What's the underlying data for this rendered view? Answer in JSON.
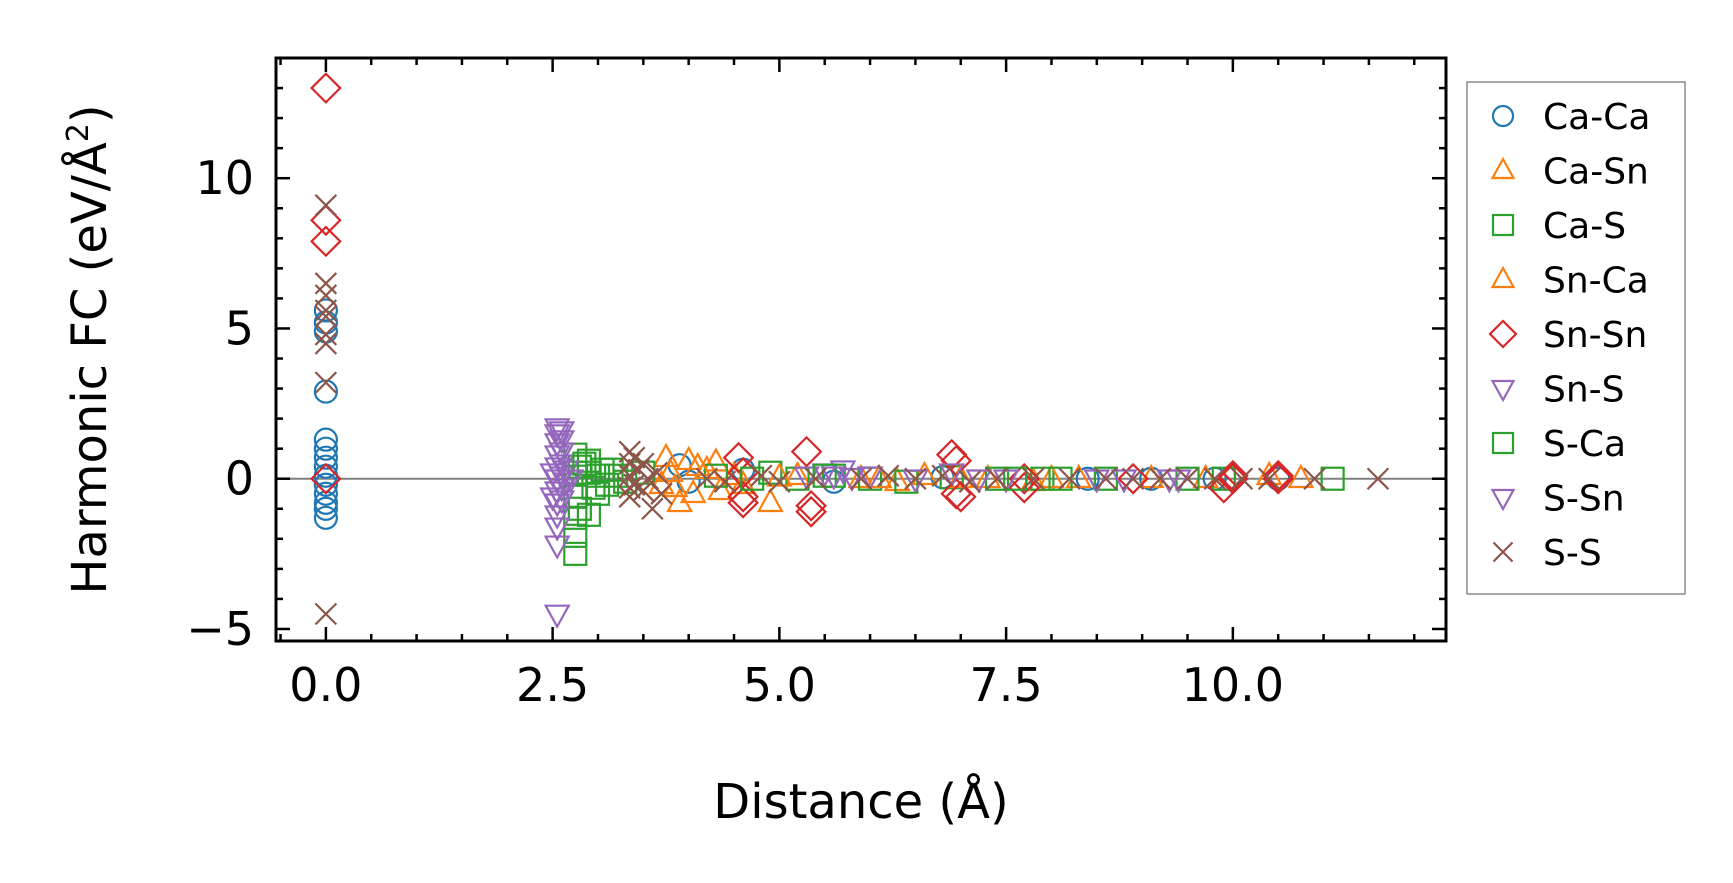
{
  "chart_data": {
    "type": "scatter",
    "xlabel": "Distance (Å)",
    "ylabel": {
      "prefix": "Harmonic FC (eV/Å",
      "sup": "2",
      "suffix": ")"
    },
    "xlim": [
      -0.55,
      12.35
    ],
    "ylim": [
      -5.4,
      14.0
    ],
    "xticks": [
      0.0,
      2.5,
      5.0,
      7.5,
      10.0
    ],
    "xtick_labels": [
      "0.0",
      "2.5",
      "5.0",
      "7.5",
      "10.0"
    ],
    "yticks": [
      -5,
      0,
      5,
      10
    ],
    "ytick_labels": [
      "−5",
      "0",
      "5",
      "10"
    ],
    "zero_line": true,
    "legend_position": "outside-right",
    "series": [
      {
        "name": "Ca-Ca",
        "marker": "circle",
        "color": "#1f77b4",
        "points": [
          [
            0,
            4.9
          ],
          [
            0,
            5.2
          ],
          [
            0,
            5.6
          ],
          [
            0,
            2.9
          ],
          [
            0,
            1.3
          ],
          [
            0,
            1.0
          ],
          [
            0,
            0.7
          ],
          [
            0,
            0.4
          ],
          [
            0,
            0.1
          ],
          [
            0,
            -0.2
          ],
          [
            0,
            -0.5
          ],
          [
            0,
            -0.8
          ],
          [
            0,
            -1.0
          ],
          [
            0,
            -1.3
          ],
          [
            3.9,
            0.45
          ],
          [
            4.0,
            -0.1
          ],
          [
            4.6,
            0.3
          ],
          [
            5.6,
            -0.1
          ],
          [
            6.8,
            0.05
          ],
          [
            8.4,
            0.0
          ],
          [
            9.1,
            0.0
          ],
          [
            9.8,
            0.0
          ],
          [
            10.5,
            0.0
          ]
        ]
      },
      {
        "name": "Ca-Sn",
        "marker": "triangle-up",
        "color": "#ff7f0e",
        "points": [
          [
            3.75,
            0.7
          ],
          [
            3.8,
            0.2
          ],
          [
            3.85,
            -0.3
          ],
          [
            3.9,
            -0.8
          ],
          [
            4.0,
            0.6
          ],
          [
            4.05,
            -0.5
          ],
          [
            4.2,
            0.3
          ],
          [
            4.3,
            0.55
          ],
          [
            4.35,
            -0.4
          ],
          [
            4.5,
            0.1
          ],
          [
            4.9,
            -0.8
          ],
          [
            5.2,
            0.1
          ],
          [
            5.9,
            0.0
          ],
          [
            6.3,
            -0.1
          ],
          [
            6.6,
            0.1
          ],
          [
            7.3,
            0.0
          ],
          [
            7.8,
            -0.1
          ],
          [
            8.3,
            0.0
          ],
          [
            9.1,
            0.0
          ],
          [
            9.7,
            0.0
          ],
          [
            10.4,
            0.1
          ],
          [
            10.75,
            0.0
          ]
        ]
      },
      {
        "name": "Ca-S",
        "marker": "square",
        "color": "#2ca02c",
        "points": [
          [
            2.75,
            -2.5
          ],
          [
            2.75,
            -1.9
          ],
          [
            2.75,
            -1.3
          ],
          [
            2.75,
            -0.6
          ],
          [
            2.75,
            0.2
          ],
          [
            2.75,
            0.8
          ],
          [
            2.8,
            -1.0
          ],
          [
            2.8,
            0.4
          ],
          [
            2.9,
            -1.2
          ],
          [
            2.9,
            0.2
          ],
          [
            2.9,
            0.6
          ],
          [
            3.0,
            -0.5
          ],
          [
            3.0,
            0.1
          ],
          [
            3.05,
            0.3
          ],
          [
            3.1,
            -0.2
          ],
          [
            3.2,
            0.1
          ],
          [
            3.3,
            -0.1
          ],
          [
            3.5,
            0.2
          ],
          [
            4.3,
            0.1
          ],
          [
            4.9,
            0.2
          ],
          [
            5.2,
            0.0
          ],
          [
            5.6,
            0.1
          ],
          [
            6.0,
            0.0
          ],
          [
            6.4,
            -0.1
          ],
          [
            6.9,
            0.05
          ],
          [
            7.4,
            0.0
          ],
          [
            7.9,
            0.0
          ],
          [
            8.6,
            0.0
          ],
          [
            9.5,
            0.0
          ],
          [
            9.9,
            0.0
          ],
          [
            11.1,
            0.0
          ]
        ]
      },
      {
        "name": "Sn-Ca",
        "marker": "triangle-up",
        "color": "#ff7f0e",
        "points": [
          [
            3.7,
            -0.2
          ],
          [
            4.1,
            0.4
          ],
          [
            4.6,
            -0.2
          ],
          [
            5.0,
            0.05
          ],
          [
            6.1,
            0.0
          ],
          [
            7.0,
            0.0
          ],
          [
            8.0,
            0.0
          ]
        ]
      },
      {
        "name": "Sn-Sn",
        "marker": "diamond",
        "color": "#d62728",
        "points": [
          [
            0,
            13.0
          ],
          [
            0,
            8.6
          ],
          [
            0,
            7.9
          ],
          [
            0,
            0.0
          ],
          [
            4.55,
            0.7
          ],
          [
            4.6,
            0.2
          ],
          [
            4.6,
            -0.6
          ],
          [
            4.6,
            -0.8
          ],
          [
            5.3,
            0.9
          ],
          [
            5.35,
            -0.9
          ],
          [
            5.35,
            -1.1
          ],
          [
            6.9,
            0.8
          ],
          [
            6.95,
            0.6
          ],
          [
            6.95,
            -0.5
          ],
          [
            7.0,
            -0.6
          ],
          [
            7.7,
            0.0
          ],
          [
            7.7,
            -0.3
          ],
          [
            8.9,
            0.0
          ],
          [
            9.9,
            -0.3
          ],
          [
            10.0,
            0.0
          ],
          [
            10.0,
            0.1
          ],
          [
            10.5,
            0.0
          ],
          [
            10.5,
            0.1
          ]
        ]
      },
      {
        "name": "Sn-S",
        "marker": "triangle-down",
        "color": "#9467bd",
        "points": [
          [
            2.55,
            1.7
          ],
          [
            2.55,
            1.5
          ],
          [
            2.55,
            1.2
          ],
          [
            2.55,
            0.8
          ],
          [
            2.55,
            0.4
          ],
          [
            2.55,
            0.0
          ],
          [
            2.55,
            -0.4
          ],
          [
            2.55,
            -0.8
          ],
          [
            2.55,
            -1.2
          ],
          [
            2.55,
            -1.6
          ],
          [
            2.55,
            -2.2
          ],
          [
            2.55,
            -4.5
          ],
          [
            2.6,
            1.6
          ],
          [
            2.6,
            1.3
          ],
          [
            2.6,
            0.9
          ],
          [
            2.6,
            0.5
          ],
          [
            2.6,
            0.1
          ],
          [
            2.6,
            -0.3
          ],
          [
            2.6,
            -0.7
          ],
          [
            2.65,
            0.3
          ],
          [
            2.65,
            -0.1
          ],
          [
            5.3,
            0.1
          ],
          [
            5.5,
            0.2
          ],
          [
            5.7,
            0.3
          ],
          [
            5.8,
            0.05
          ],
          [
            6.0,
            0.1
          ],
          [
            6.9,
            0.2
          ],
          [
            7.2,
            0.0
          ],
          [
            7.5,
            0.0
          ],
          [
            8.5,
            0.0
          ],
          [
            9.4,
            0.0
          ]
        ]
      },
      {
        "name": "S-Ca",
        "marker": "square",
        "color": "#2ca02c",
        "points": [
          [
            2.85,
            0.5
          ],
          [
            2.95,
            -0.3
          ],
          [
            3.15,
            0.3
          ],
          [
            4.7,
            0.0
          ],
          [
            5.5,
            0.1
          ],
          [
            7.6,
            0.0
          ],
          [
            8.1,
            0.0
          ]
        ]
      },
      {
        "name": "S-Sn",
        "marker": "triangle-down",
        "color": "#9467bd",
        "points": [
          [
            2.5,
            0.2
          ],
          [
            2.5,
            -0.6
          ],
          [
            2.7,
            0.0
          ],
          [
            5.6,
            0.1
          ],
          [
            6.5,
            0.0
          ],
          [
            8.8,
            0.0
          ],
          [
            9.3,
            0.0
          ]
        ]
      },
      {
        "name": "S-S",
        "marker": "x",
        "color": "#8c564b",
        "points": [
          [
            0,
            9.1
          ],
          [
            0,
            6.5
          ],
          [
            0,
            6.1
          ],
          [
            0,
            5.6
          ],
          [
            0,
            5.4
          ],
          [
            0,
            4.8
          ],
          [
            0,
            4.5
          ],
          [
            0,
            3.2
          ],
          [
            0,
            -4.5
          ],
          [
            3.35,
            0.9
          ],
          [
            3.35,
            0.5
          ],
          [
            3.35,
            0.1
          ],
          [
            3.35,
            -0.3
          ],
          [
            3.35,
            -0.6
          ],
          [
            3.4,
            0.7
          ],
          [
            3.4,
            -0.2
          ],
          [
            3.45,
            0.3
          ],
          [
            3.5,
            0.5
          ],
          [
            3.5,
            -0.4
          ],
          [
            3.55,
            0.0
          ],
          [
            3.6,
            -1.0
          ],
          [
            3.65,
            0.2
          ],
          [
            3.7,
            -0.5
          ],
          [
            4.2,
            0.0
          ],
          [
            4.4,
            -0.1
          ],
          [
            4.8,
            0.1
          ],
          [
            5.0,
            -0.1
          ],
          [
            5.4,
            0.0
          ],
          [
            5.9,
            0.0
          ],
          [
            6.2,
            0.1
          ],
          [
            6.5,
            0.0
          ],
          [
            6.8,
            0.1
          ],
          [
            7.1,
            -0.1
          ],
          [
            7.4,
            0.0
          ],
          [
            7.8,
            0.0
          ],
          [
            8.2,
            0.0
          ],
          [
            8.6,
            0.0
          ],
          [
            8.9,
            0.0
          ],
          [
            9.2,
            0.0
          ],
          [
            9.5,
            0.0
          ],
          [
            9.8,
            0.0
          ],
          [
            10.1,
            0.0
          ],
          [
            10.4,
            0.0
          ],
          [
            10.9,
            0.0
          ],
          [
            11.6,
            0.0
          ]
        ]
      }
    ]
  }
}
